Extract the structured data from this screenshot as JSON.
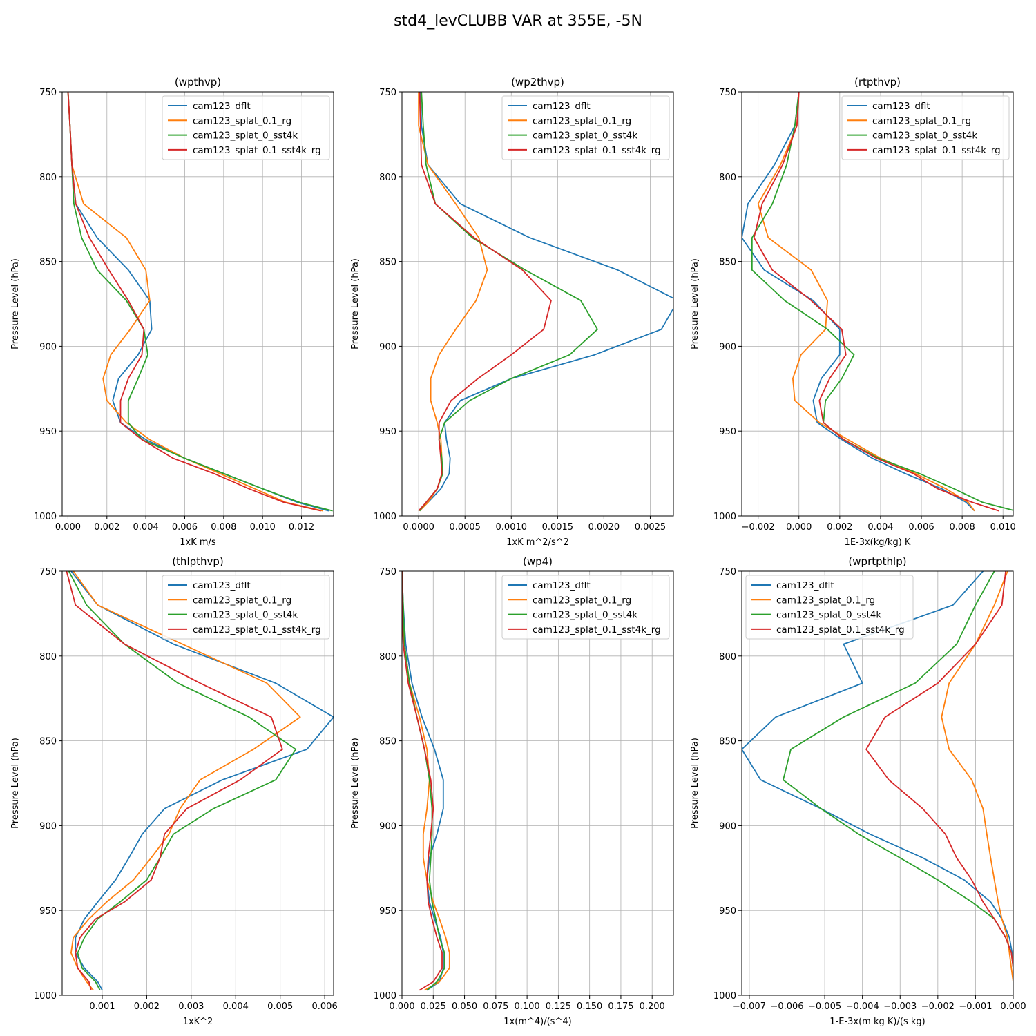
{
  "figure": {
    "title": "std4_levCLUBB VAR at 355E, -5N"
  },
  "colors": {
    "cam123_dflt": "#1f77b4",
    "cam123_splat_0.1_rg": "#ff7f0e",
    "cam123_splat_0_sst4k": "#2ca02c",
    "cam123_splat_0.1_sst4k_rg": "#d62728"
  },
  "chart_data": [
    {
      "type": "line",
      "title": "(wpthvp)",
      "xlabel": "1xK m/s",
      "ylabel": "Pressure Level (hPa)",
      "xlim": [
        -0.0003,
        0.01365
      ],
      "ylim": [
        1000,
        750
      ],
      "xticks": [
        0.0,
        0.002,
        0.004,
        0.006,
        0.008,
        0.01,
        0.012
      ],
      "xtick_labels": [
        "0.000",
        "0.002",
        "0.004",
        "0.006",
        "0.008",
        "0.010",
        "0.012"
      ],
      "yticks": [
        750,
        800,
        850,
        900,
        950,
        1000
      ],
      "ytick_labels": [
        "750",
        "800",
        "850",
        "900",
        "950",
        "1000"
      ],
      "legend_loc": "top-right",
      "grid": true,
      "levels": [
        750,
        770,
        793,
        816,
        836,
        855,
        873,
        890,
        905,
        919,
        932,
        945,
        955,
        966,
        975,
        984,
        992,
        997
      ],
      "series": [
        {
          "name": "cam123_dflt",
          "values": [
            0.0,
            0.0001,
            0.0002,
            0.0004,
            0.0015,
            0.0031,
            0.0042,
            0.0043,
            0.0036,
            0.0026,
            0.0023,
            0.0027,
            0.004,
            0.006,
            0.008,
            0.01,
            0.0118,
            0.0134
          ]
        },
        {
          "name": "cam123_splat_0.1_rg",
          "values": [
            0.0,
            0.0001,
            0.0002,
            0.0008,
            0.003,
            0.004,
            0.0042,
            0.0032,
            0.0022,
            0.0018,
            0.002,
            0.003,
            0.0042,
            0.006,
            0.0078,
            0.0096,
            0.0112,
            0.0131
          ]
        },
        {
          "name": "cam123_splat_0_sst4k",
          "values": [
            0.0,
            0.0001,
            0.0002,
            0.0003,
            0.0007,
            0.0015,
            0.003,
            0.0039,
            0.0041,
            0.0036,
            0.0031,
            0.0031,
            0.0038,
            0.006,
            0.008,
            0.01,
            0.0119,
            0.0136
          ]
        },
        {
          "name": "cam123_splat_0.1_sst4k_rg",
          "values": [
            0.0,
            0.0001,
            0.0002,
            0.0004,
            0.0011,
            0.0021,
            0.0031,
            0.0039,
            0.0038,
            0.0031,
            0.0027,
            0.0027,
            0.0038,
            0.0054,
            0.0075,
            0.0093,
            0.0111,
            0.013
          ]
        }
      ]
    },
    {
      "type": "line",
      "title": "(wp2thvp)",
      "xlabel": "1xK m^2/s^2",
      "ylabel": "Pressure Level (hPa)",
      "xlim": [
        -0.00018,
        0.00275
      ],
      "ylim": [
        1000,
        750
      ],
      "xticks": [
        0.0,
        0.0005,
        0.001,
        0.0015,
        0.002,
        0.0025
      ],
      "xtick_labels": [
        "0.0000",
        "0.0005",
        "0.0010",
        "0.0015",
        "0.0020",
        "0.0025"
      ],
      "yticks": [
        750,
        800,
        850,
        900,
        950,
        1000
      ],
      "ytick_labels": [
        "750",
        "800",
        "850",
        "900",
        "950",
        "1000"
      ],
      "legend_loc": "top-right",
      "grid": true,
      "levels": [
        750,
        770,
        793,
        816,
        836,
        855,
        873,
        890,
        905,
        919,
        932,
        945,
        955,
        966,
        975,
        984,
        992,
        997
      ],
      "series": [
        {
          "name": "cam123_dflt",
          "values": [
            2e-05,
            3e-05,
            0.0001,
            0.00045,
            0.0012,
            0.00215,
            0.0028,
            0.00262,
            0.0019,
            0.001,
            0.00045,
            0.00028,
            0.0003,
            0.00034,
            0.00033,
            0.00024,
            0.0001,
            1e-05
          ]
        },
        {
          "name": "cam123_splat_0.1_rg",
          "values": [
            0.0,
            0.0,
            0.0001,
            0.0004,
            0.00065,
            0.00074,
            0.00062,
            0.0004,
            0.00022,
            0.00013,
            0.00013,
            0.0002,
            0.00024,
            0.00025,
            0.00025,
            0.0002,
            0.0001,
            1e-05
          ]
        },
        {
          "name": "cam123_splat_0_sst4k",
          "values": [
            3e-05,
            5e-05,
            8e-05,
            0.00018,
            0.00058,
            0.00115,
            0.00175,
            0.00193,
            0.00163,
            0.001,
            0.00055,
            0.00028,
            0.00022,
            0.00025,
            0.00026,
            0.0002,
            8e-05,
            1e-05
          ]
        },
        {
          "name": "cam123_splat_0.1_sst4k_rg",
          "values": [
            1e-05,
            2e-05,
            3e-05,
            0.00018,
            0.0006,
            0.00112,
            0.00143,
            0.00135,
            0.001,
            0.00064,
            0.00035,
            0.00022,
            0.00022,
            0.00024,
            0.00025,
            0.0002,
            8e-05,
            0.0
          ]
        }
      ]
    },
    {
      "type": "line",
      "title": "(rtpthvp)",
      "xlabel": "1E-3x(kg/kg) K",
      "ylabel": "Pressure Level (hPa)",
      "xlim": [
        -0.0028,
        0.0105
      ],
      "ylim": [
        1000,
        750
      ],
      "xticks": [
        -0.002,
        0.0,
        0.002,
        0.004,
        0.006,
        0.008,
        0.01
      ],
      "xtick_labels": [
        "−0.002",
        "0.000",
        "0.002",
        "0.004",
        "0.006",
        "0.008",
        "0.010"
      ],
      "yticks": [
        750,
        800,
        850,
        900,
        950,
        1000
      ],
      "ytick_labels": [
        "750",
        "800",
        "850",
        "900",
        "950",
        "1000"
      ],
      "legend_loc": "top-right",
      "grid": true,
      "levels": [
        750,
        770,
        793,
        816,
        836,
        855,
        873,
        890,
        905,
        919,
        932,
        945,
        955,
        966,
        975,
        984,
        992,
        997
      ],
      "series": [
        {
          "name": "cam123_dflt",
          "values": [
            0.0,
            -0.0002,
            -0.0012,
            -0.0025,
            -0.0028,
            -0.0017,
            0.0007,
            0.002,
            0.002,
            0.0011,
            0.0007,
            0.0009,
            0.0021,
            0.0036,
            0.0052,
            0.007,
            0.0082,
            0.0086
          ]
        },
        {
          "name": "cam123_splat_0.1_rg",
          "values": [
            0.0,
            -0.0001,
            -0.0009,
            -0.002,
            -0.0015,
            0.0006,
            0.0014,
            0.0013,
            0.0001,
            -0.0003,
            -0.0002,
            0.001,
            0.0024,
            0.004,
            0.0057,
            0.0072,
            0.0083,
            0.0086
          ]
        },
        {
          "name": "cam123_splat_0_sst4k",
          "values": [
            0.0,
            -0.0002,
            -0.0006,
            -0.0013,
            -0.0023,
            -0.0023,
            -0.0007,
            0.0014,
            0.0027,
            0.0021,
            0.0013,
            0.0012,
            0.0022,
            0.0039,
            0.0059,
            0.0076,
            0.009,
            0.0106
          ]
        },
        {
          "name": "cam123_splat_0.1_sst4k_rg",
          "values": [
            0.0,
            -0.0001,
            -0.0008,
            -0.0018,
            -0.0022,
            -0.0013,
            0.0006,
            0.0021,
            0.0023,
            0.0015,
            0.001,
            0.0012,
            0.0022,
            0.0038,
            0.0056,
            0.0068,
            0.0085,
            0.0098
          ]
        }
      ]
    },
    {
      "type": "line",
      "title": "(thlpthvp)",
      "xlabel": "1xK^2",
      "ylabel": "Pressure Level (hPa)",
      "xlim": [
        0.0001,
        0.0062
      ],
      "ylim": [
        1000,
        750
      ],
      "xticks": [
        0.001,
        0.002,
        0.003,
        0.004,
        0.005,
        0.006
      ],
      "xtick_labels": [
        "0.001",
        "0.002",
        "0.003",
        "0.004",
        "0.005",
        "0.006"
      ],
      "yticks": [
        750,
        800,
        850,
        900,
        950,
        1000
      ],
      "ytick_labels": [
        "750",
        "800",
        "850",
        "900",
        "950",
        "1000"
      ],
      "legend_loc": "top-right",
      "grid": true,
      "levels": [
        750,
        770,
        793,
        816,
        836,
        855,
        873,
        890,
        905,
        919,
        932,
        945,
        955,
        966,
        975,
        984,
        992,
        997
      ],
      "series": [
        {
          "name": "cam123_dflt",
          "values": [
            0.0003,
            0.0009,
            0.0026,
            0.0049,
            0.0062,
            0.0056,
            0.0037,
            0.0024,
            0.0019,
            0.0016,
            0.0013,
            0.0009,
            0.0006,
            0.0004,
            0.0004,
            0.0006,
            0.0009,
            0.001
          ]
        },
        {
          "name": "cam123_splat_0.1_rg",
          "values": [
            0.00035,
            0.0009,
            0.0028,
            0.0047,
            0.00545,
            0.0044,
            0.0032,
            0.00275,
            0.0025,
            0.0021,
            0.0017,
            0.0011,
            0.0007,
            0.00035,
            0.0003,
            0.00045,
            0.00065,
            0.0008
          ]
        },
        {
          "name": "cam123_splat_0_sst4k",
          "values": [
            0.00025,
            0.00065,
            0.0015,
            0.0027,
            0.0043,
            0.00535,
            0.0049,
            0.0035,
            0.0026,
            0.0023,
            0.002,
            0.0014,
            0.0009,
            0.0006,
            0.00045,
            0.00055,
            0.00085,
            0.00095
          ]
        },
        {
          "name": "cam123_splat_0.1_sst4k_rg",
          "values": [
            0.0002,
            0.0004,
            0.0015,
            0.0032,
            0.0048,
            0.00505,
            0.0041,
            0.0029,
            0.0024,
            0.0023,
            0.0021,
            0.0015,
            0.00085,
            0.0005,
            0.0004,
            0.00045,
            0.0007,
            0.00075
          ]
        }
      ]
    },
    {
      "type": "line",
      "title": "(wp4)",
      "xlabel": "1x(m^4)/(s^4)",
      "ylabel": "Pressure Level (hPa)",
      "xlim": [
        0.0,
        0.217
      ],
      "ylim": [
        1000,
        750
      ],
      "xticks": [
        0.0,
        0.025,
        0.05,
        0.075,
        0.1,
        0.125,
        0.15,
        0.175,
        0.2
      ],
      "xtick_labels": [
        "0.000",
        "0.025",
        "0.050",
        "0.075",
        "0.100",
        "0.125",
        "0.150",
        "0.175",
        "0.200"
      ],
      "yticks": [
        750,
        800,
        850,
        900,
        950,
        1000
      ],
      "ytick_labels": [
        "750",
        "800",
        "850",
        "900",
        "950",
        "1000"
      ],
      "legend_loc": "top-right",
      "grid": true,
      "levels": [
        750,
        770,
        793,
        816,
        836,
        855,
        873,
        890,
        905,
        919,
        932,
        945,
        955,
        966,
        975,
        984,
        992,
        997
      ],
      "series": [
        {
          "name": "cam123_dflt",
          "values": [
            0.0,
            0.001,
            0.003,
            0.008,
            0.016,
            0.026,
            0.033,
            0.033,
            0.028,
            0.022,
            0.02,
            0.022,
            0.026,
            0.031,
            0.033,
            0.033,
            0.03,
            0.02
          ]
        },
        {
          "name": "cam123_splat_0.1_rg",
          "values": [
            0.0,
            0.0,
            0.002,
            0.006,
            0.014,
            0.02,
            0.022,
            0.02,
            0.017,
            0.017,
            0.02,
            0.025,
            0.03,
            0.035,
            0.038,
            0.038,
            0.03,
            0.018
          ]
        },
        {
          "name": "cam123_splat_0_sst4k",
          "values": [
            0.0,
            0.001,
            0.002,
            0.006,
            0.012,
            0.018,
            0.022,
            0.024,
            0.024,
            0.023,
            0.022,
            0.024,
            0.027,
            0.03,
            0.034,
            0.034,
            0.028,
            0.02
          ]
        },
        {
          "name": "cam123_splat_0.1_sst4k_rg",
          "values": [
            0.0,
            0.0,
            0.001,
            0.005,
            0.012,
            0.018,
            0.023,
            0.025,
            0.023,
            0.021,
            0.02,
            0.021,
            0.024,
            0.028,
            0.032,
            0.032,
            0.025,
            0.014
          ]
        }
      ]
    },
    {
      "type": "line",
      "title": "(wprtpthlp)",
      "xlabel": "1-E-3x(m kg K)/(s kg)",
      "ylabel": "Pressure Level (hPa)",
      "xlim": [
        -0.0072,
        0.0
      ],
      "ylim": [
        1000,
        750
      ],
      "xticks": [
        -0.007,
        -0.006,
        -0.005,
        -0.004,
        -0.003,
        -0.002,
        -0.001,
        0.0
      ],
      "xtick_labels": [
        "−0.007",
        "−0.006",
        "−0.005",
        "−0.004",
        "−0.003",
        "−0.002",
        "−0.001",
        "0.000"
      ],
      "yticks": [
        750,
        800,
        850,
        900,
        950,
        1000
      ],
      "ytick_labels": [
        "750",
        "800",
        "850",
        "900",
        "950",
        "1000"
      ],
      "legend_loc": "top-left",
      "grid": true,
      "levels": [
        750,
        770,
        793,
        816,
        836,
        855,
        873,
        890,
        905,
        919,
        932,
        945,
        955,
        966,
        975,
        984,
        992,
        997
      ],
      "series": [
        {
          "name": "cam123_dflt",
          "values": [
            -0.0008,
            -0.0016,
            -0.0045,
            -0.004,
            -0.0063,
            -0.0072,
            -0.0067,
            -0.0051,
            -0.0038,
            -0.0024,
            -0.0013,
            -0.0006,
            -0.0003,
            -0.0001,
            -3e-05,
            0.0,
            0.0,
            0.0
          ]
        },
        {
          "name": "cam123_splat_0.1_rg",
          "values": [
            -0.00015,
            -0.0005,
            -0.001,
            -0.0017,
            -0.0019,
            -0.0017,
            -0.0011,
            -0.0008,
            -0.0007,
            -0.0006,
            -0.0005,
            -0.0004,
            -0.0003,
            -0.00015,
            -0.0001,
            -5e-05,
            0.0,
            0.0
          ]
        },
        {
          "name": "cam123_splat_0_sst4k",
          "values": [
            -0.0005,
            -0.001,
            -0.0015,
            -0.0026,
            -0.0045,
            -0.0059,
            -0.0061,
            -0.0051,
            -0.0041,
            -0.003,
            -0.002,
            -0.0011,
            -0.0005,
            -0.0002,
            -5e-05,
            0.0,
            0.0,
            0.0
          ]
        },
        {
          "name": "cam123_splat_0.1_sst4k_rg",
          "values": [
            -0.0002,
            -0.0003,
            -0.001,
            -0.002,
            -0.0034,
            -0.0039,
            -0.0033,
            -0.0024,
            -0.0018,
            -0.0015,
            -0.0011,
            -0.0008,
            -0.0005,
            -0.0002,
            -5e-05,
            0.0,
            0.0,
            0.0
          ]
        }
      ]
    }
  ]
}
